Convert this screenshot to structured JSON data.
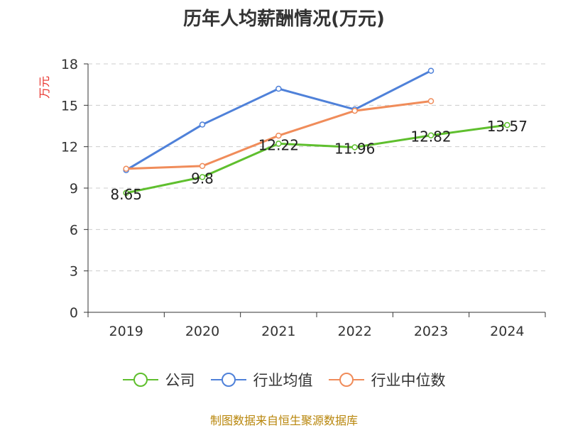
{
  "chart_data": {
    "type": "line",
    "title": "历年人均薪酬情况(万元)",
    "ylabel": "万元",
    "xlabel": "",
    "categories": [
      "2019",
      "2020",
      "2021",
      "2022",
      "2023",
      "2024"
    ],
    "ylim": [
      0,
      18
    ],
    "yticks": [
      0,
      3,
      6,
      9,
      12,
      15,
      18
    ],
    "grid": true,
    "legend_position": "bottom",
    "series": [
      {
        "name": "公司",
        "color": "#5fbf2e",
        "values": [
          8.65,
          9.8,
          12.22,
          11.96,
          12.82,
          13.57
        ],
        "labels": [
          "8.65",
          "9.8",
          "12.22",
          "11.96",
          "12.82",
          "13.57"
        ]
      },
      {
        "name": "行业均值",
        "color": "#4f81d9",
        "values": [
          10.3,
          13.6,
          16.2,
          14.7,
          17.5,
          null
        ]
      },
      {
        "name": "行业中位数",
        "color": "#f08c5a",
        "values": [
          10.4,
          10.6,
          12.8,
          14.6,
          15.3,
          null
        ]
      }
    ]
  },
  "footer": {
    "source": "制图数据来自恒生聚源数据库"
  }
}
